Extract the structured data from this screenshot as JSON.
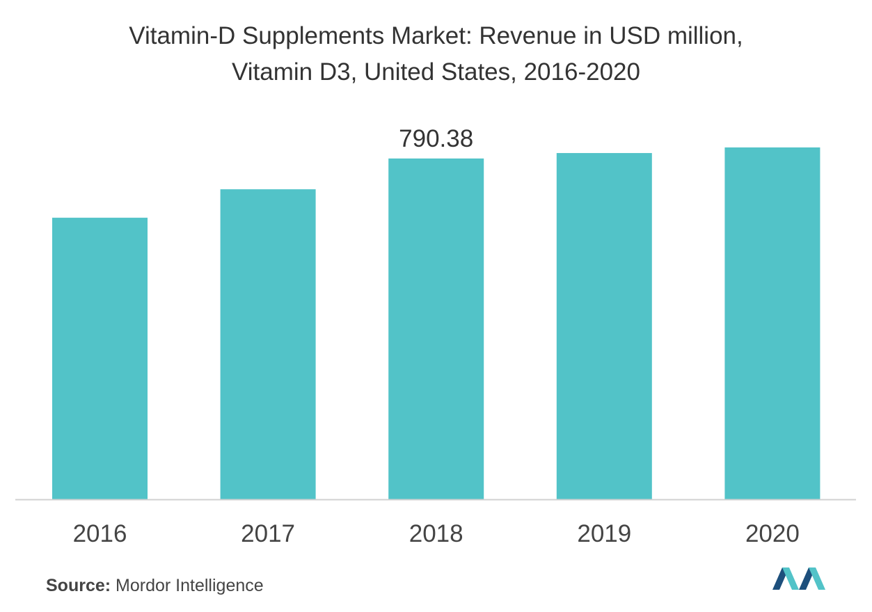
{
  "colors": {
    "bar": "#52c3c8",
    "axis": "#d0d0d0",
    "text": "#333333",
    "logo_dark": "#1d4f7c",
    "logo_light": "#52c3c8"
  },
  "chart_data": {
    "type": "bar",
    "title": "Vitamin-D Supplements Market: Revenue in USD million,",
    "subtitle": "Vitamin D3, United States, 2016-2020",
    "xlabel": "",
    "ylabel": "",
    "categories": [
      "2016",
      "2017",
      "2018",
      "2019",
      "2020"
    ],
    "values": [
      653,
      719,
      790.38,
      803,
      816
    ],
    "data_labels": [
      "",
      "",
      "790.38",
      "",
      ""
    ],
    "ylim": [
      0,
      1100
    ],
    "grid": false,
    "legend": "none"
  },
  "source": {
    "label": "Source:",
    "text": "Mordor Intelligence"
  },
  "logo": {
    "icon": "mordor-intelligence-logo-icon"
  }
}
